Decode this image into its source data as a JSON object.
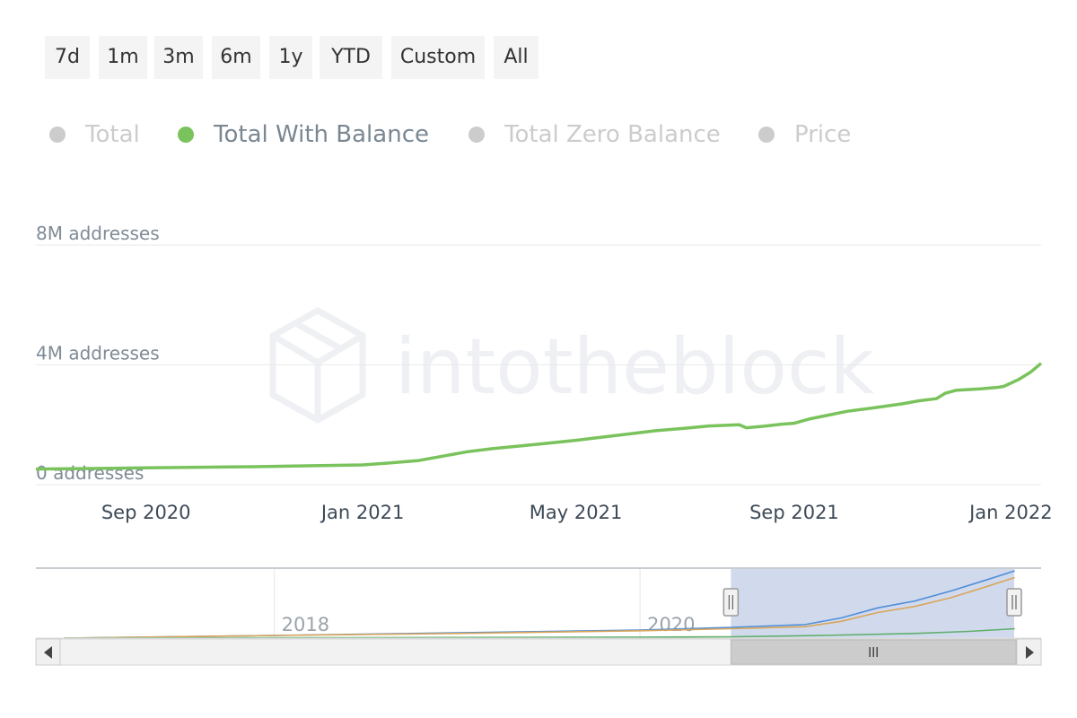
{
  "range_selector": {
    "buttons": [
      "7d",
      "1m",
      "3m",
      "6m",
      "1y",
      "YTD",
      "Custom",
      "All"
    ]
  },
  "legend": [
    {
      "name": "Total",
      "active": false
    },
    {
      "name": "Total With Balance",
      "active": true
    },
    {
      "name": "Total Zero Balance",
      "active": false
    },
    {
      "name": "Price",
      "active": false
    }
  ],
  "watermark": "intotheblock",
  "colors": {
    "series_active": "#7ac35c",
    "legend_inactive": "#cccccc",
    "navigator_total": "#4f8fd8",
    "navigator_zero_balance": "#d9a55a",
    "navigator_with_balance": "#5fae6a",
    "navigator_mask": "#ccd6eb"
  },
  "chart_data": {
    "type": "line",
    "title": "",
    "xlabel": "",
    "ylabel": "",
    "y_axis": {
      "range": [
        0,
        8000000
      ],
      "ticks": [
        0,
        4000000,
        8000000
      ],
      "tick_labels": [
        "0 addresses",
        "4M addresses",
        "8M addresses"
      ]
    },
    "x_axis": {
      "range": [
        "2020-07-01",
        "2022-01-18"
      ],
      "ticks": [
        "2020-09-01",
        "2021-01-01",
        "2021-05-01",
        "2021-09-01",
        "2022-01-01"
      ],
      "tick_labels": [
        "Sep 2020",
        "Jan 2021",
        "May 2021",
        "Sep 2021",
        "Jan 2022"
      ]
    },
    "grid": true,
    "legend_position": "top",
    "series": [
      {
        "name": "Total With Balance",
        "x": [
          "2020-07-01",
          "2020-08-01",
          "2020-09-01",
          "2020-10-01",
          "2020-11-01",
          "2020-12-01",
          "2021-01-01",
          "2021-01-15",
          "2021-02-01",
          "2021-02-15",
          "2021-03-01",
          "2021-03-15",
          "2021-04-01",
          "2021-04-15",
          "2021-05-01",
          "2021-05-15",
          "2021-06-01",
          "2021-06-15",
          "2021-07-01",
          "2021-07-15",
          "2021-08-01",
          "2021-08-05",
          "2021-08-15",
          "2021-08-25",
          "2021-09-01",
          "2021-09-10",
          "2021-09-20",
          "2021-10-01",
          "2021-10-15",
          "2021-11-01",
          "2021-11-10",
          "2021-11-20",
          "2021-11-25",
          "2021-12-01",
          "2021-12-15",
          "2021-12-25",
          "2021-12-28",
          "2022-01-05",
          "2022-01-12",
          "2022-01-18"
        ],
        "values": [
          520000,
          540000,
          560000,
          580000,
          600000,
          630000,
          660000,
          720000,
          800000,
          950000,
          1100000,
          1200000,
          1300000,
          1380000,
          1480000,
          1580000,
          1700000,
          1800000,
          1880000,
          1960000,
          2000000,
          1900000,
          1950000,
          2020000,
          2050000,
          2200000,
          2320000,
          2450000,
          2560000,
          2700000,
          2800000,
          2870000,
          3050000,
          3150000,
          3200000,
          3250000,
          3280000,
          3500000,
          3750000,
          4050000
        ]
      }
    ],
    "navigator": {
      "x_range": [
        "2016-11-01",
        "2022-01-18"
      ],
      "tick_labels": [
        "2018",
        "2020"
      ],
      "ticks": [
        "2018-01-01",
        "2020-01-01"
      ],
      "selected_range": [
        "2020-07-01",
        "2022-01-18"
      ],
      "series": [
        {
          "x": [
            2016.85,
            2018.0,
            2019.0,
            2020.0,
            2020.5,
            2020.9,
            2021.1,
            2021.3,
            2021.5,
            2021.7,
            2021.9,
            2022.05
          ],
          "values": [
            0,
            0.04,
            0.08,
            0.12,
            0.16,
            0.2,
            0.3,
            0.45,
            0.55,
            0.7,
            0.87,
            1.0
          ]
        },
        {
          "x": [
            2016.85,
            2018.0,
            2019.0,
            2020.0,
            2020.5,
            2020.9,
            2021.1,
            2021.3,
            2021.5,
            2021.7,
            2021.9,
            2022.05
          ],
          "values": [
            0,
            0.04,
            0.07,
            0.11,
            0.14,
            0.17,
            0.25,
            0.38,
            0.47,
            0.6,
            0.77,
            0.9
          ]
        },
        {
          "x": [
            2016.85,
            2018.0,
            2019.0,
            2020.0,
            2020.5,
            2021.0,
            2021.5,
            2021.8,
            2022.05
          ],
          "values": [
            0,
            0.005,
            0.01,
            0.015,
            0.02,
            0.04,
            0.07,
            0.1,
            0.14
          ]
        }
      ]
    }
  }
}
